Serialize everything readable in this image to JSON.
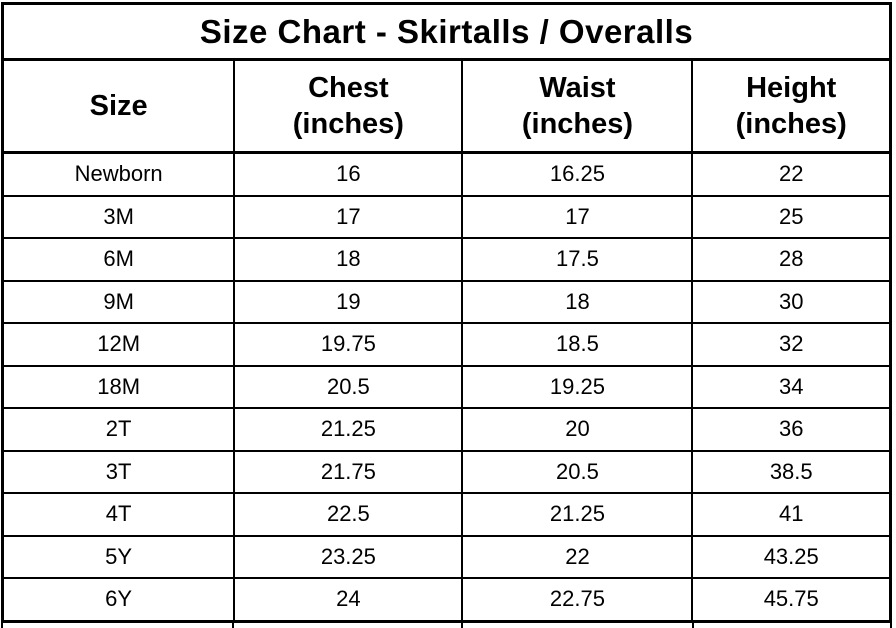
{
  "title": "Size Chart - Skirtalls / Overalls",
  "header": {
    "columns": [
      {
        "label": "Size",
        "unit": ""
      },
      {
        "label": "Chest",
        "unit": "(inches)"
      },
      {
        "label": "Waist",
        "unit": "(inches)"
      },
      {
        "label": "Height",
        "unit": "(inches)"
      }
    ]
  },
  "rows": [
    [
      "Newborn",
      "16",
      "16.25",
      "22"
    ],
    [
      "3M",
      "17",
      "17",
      "25"
    ],
    [
      "6M",
      "18",
      "17.5",
      "28"
    ],
    [
      "9M",
      "19",
      "18",
      "30"
    ],
    [
      "12M",
      "19.75",
      "18.5",
      "32"
    ],
    [
      "18M",
      "20.5",
      "19.25",
      "34"
    ],
    [
      "2T",
      "21.25",
      "20",
      "36"
    ],
    [
      "3T",
      "21.75",
      "20.5",
      "38.5"
    ],
    [
      "4T",
      "22.5",
      "21.25",
      "41"
    ],
    [
      "5Y",
      "23.25",
      "22",
      "43.25"
    ],
    [
      "6Y",
      "24",
      "22.75",
      "45.75"
    ]
  ],
  "colors": {
    "background": "#ffffff",
    "text": "#000000",
    "border": "#000000"
  },
  "chart_data": {
    "type": "table",
    "title": "Size Chart - Skirtalls / Overalls",
    "columns": [
      "Size",
      "Chest (inches)",
      "Waist (inches)",
      "Height (inches)"
    ],
    "rows": [
      [
        "Newborn",
        16,
        16.25,
        22
      ],
      [
        "3M",
        17,
        17,
        25
      ],
      [
        "6M",
        18,
        17.5,
        28
      ],
      [
        "9M",
        19,
        18,
        30
      ],
      [
        "12M",
        19.75,
        18.5,
        32
      ],
      [
        "18M",
        20.5,
        19.25,
        34
      ],
      [
        "2T",
        21.25,
        20,
        36
      ],
      [
        "3T",
        21.75,
        20.5,
        38.5
      ],
      [
        "4T",
        22.5,
        21.25,
        41
      ],
      [
        "5Y",
        23.25,
        22,
        43.25
      ],
      [
        "6Y",
        24,
        22.75,
        45.75
      ]
    ]
  }
}
